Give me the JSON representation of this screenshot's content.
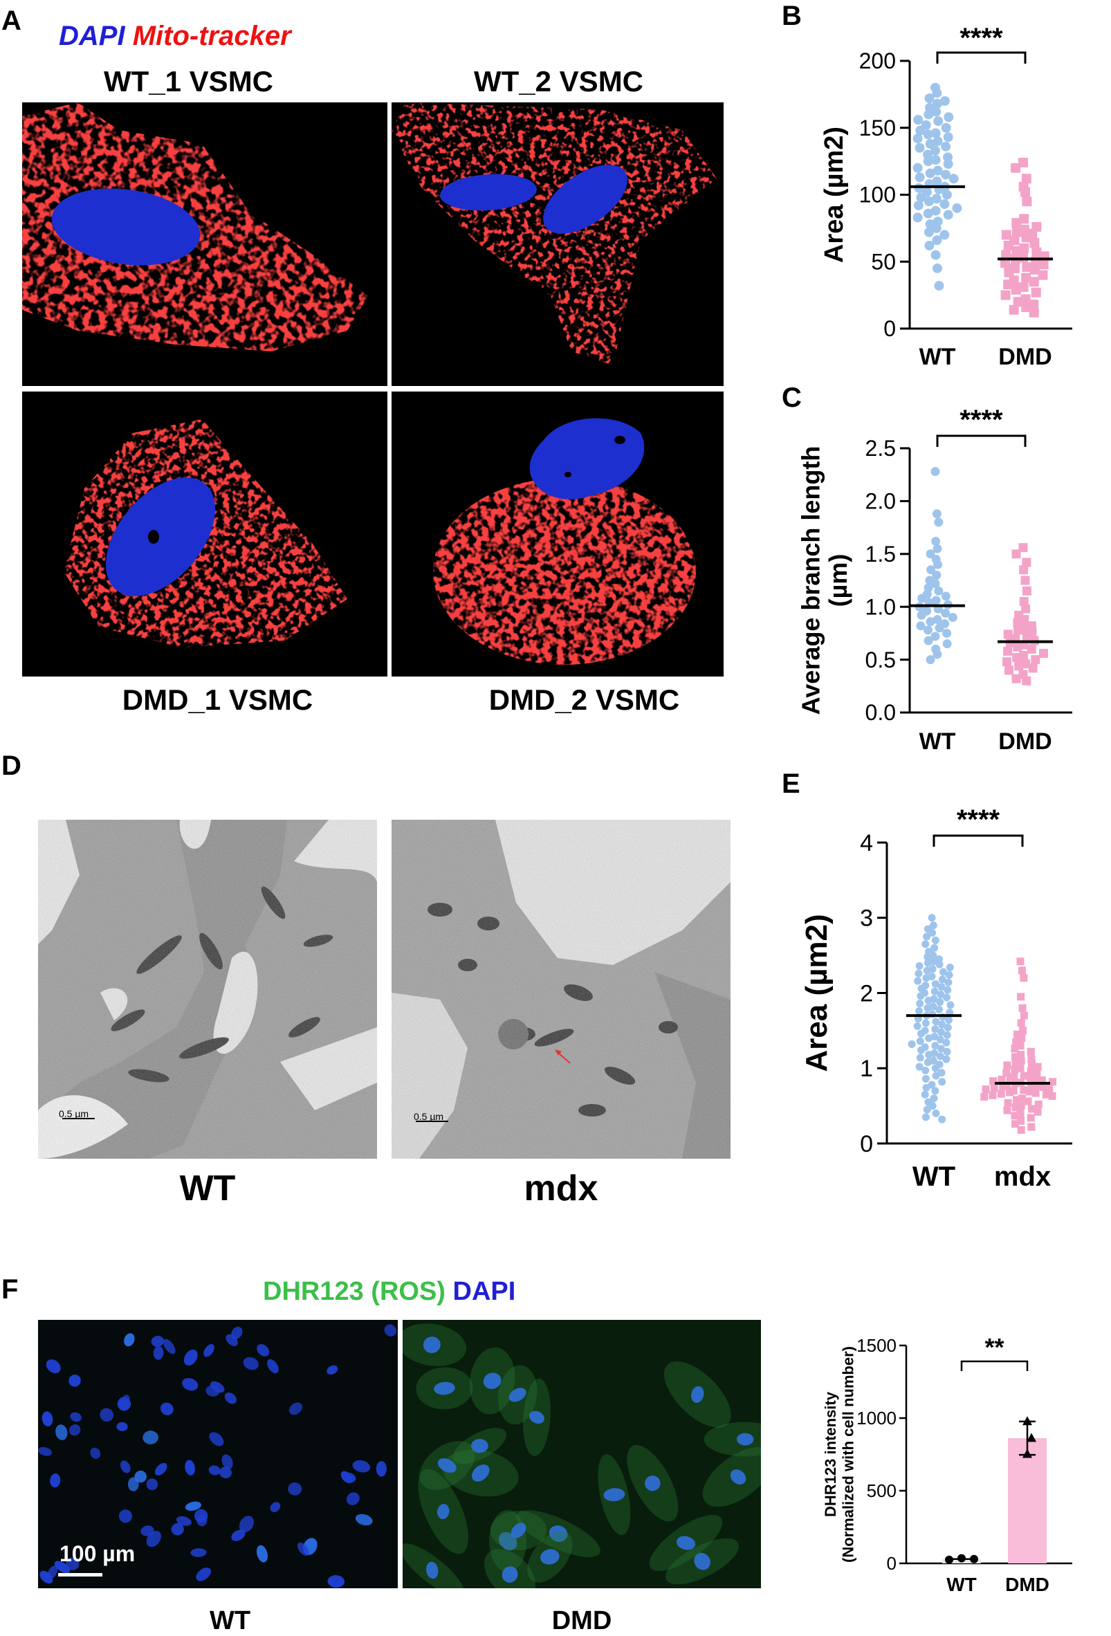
{
  "panels": {
    "a": {
      "label": "A",
      "legend": {
        "dapi": "DAPI",
        "mito": "Mito-tracker"
      },
      "images": [
        {
          "caption": "WT_1 VSMC"
        },
        {
          "caption": "WT_2 VSMC"
        },
        {
          "caption": "DMD_1 VSMC"
        },
        {
          "caption": "DMD_2 VSMC"
        }
      ]
    },
    "d": {
      "label": "D",
      "images": [
        {
          "caption": "WT",
          "scale_bar": "0.5 µm"
        },
        {
          "caption": "mdx",
          "scale_bar": "0.5 µm"
        }
      ]
    },
    "f": {
      "label": "F",
      "legend": {
        "ros": "DHR123 (ROS)",
        "dapi": "DAPI"
      },
      "images": [
        {
          "caption": "WT",
          "scale_bar": "100 µm"
        },
        {
          "caption": "DMD"
        }
      ]
    }
  },
  "colors": {
    "wt": "#9ec4ec",
    "dmd": "#f4a3c8",
    "dmd_bar": "#f9bcd9",
    "dapi_blue": "#1f1fd6",
    "mito_red": "#ee1111",
    "ros_green": "#3bbf48"
  },
  "chart_data": [
    {
      "id": "B",
      "label": "B",
      "type": "scatter",
      "ylabel": "Area (µm2)",
      "ylim": [
        0,
        200
      ],
      "yticks": [
        0,
        50,
        100,
        150,
        200
      ],
      "categories": [
        "WT",
        "DMD"
      ],
      "means": [
        106,
        52
      ],
      "significance": "****",
      "series": [
        {
          "category": "WT",
          "marker": "circle",
          "values": [
            180,
            176,
            172,
            170,
            168,
            165,
            162,
            160,
            158,
            156,
            155,
            152,
            150,
            148,
            146,
            145,
            143,
            142,
            140,
            138,
            136,
            135,
            133,
            130,
            128,
            126,
            125,
            123,
            120,
            118,
            116,
            115,
            113,
            112,
            110,
            108,
            106,
            105,
            104,
            102,
            100,
            98,
            97,
            95,
            93,
            92,
            90,
            88,
            86,
            85,
            83,
            80,
            78,
            75,
            72,
            70,
            66,
            62,
            55,
            45,
            32
          ]
        },
        {
          "category": "DMD",
          "marker": "square",
          "values": [
            124,
            120,
            112,
            106,
            102,
            95,
            82,
            79,
            76,
            74,
            72,
            71,
            70,
            68,
            66,
            64,
            62,
            60,
            58,
            57,
            55,
            54,
            53,
            52,
            50,
            49,
            48,
            46,
            45,
            44,
            42,
            40,
            38,
            36,
            35,
            33,
            31,
            29,
            27,
            25,
            22,
            20,
            18,
            16,
            14,
            12
          ]
        }
      ]
    },
    {
      "id": "C",
      "label": "C",
      "type": "scatter",
      "ylabel": "Average branch length (µm)",
      "ylim": [
        0,
        2.5
      ],
      "yticks": [
        "0.0",
        "0.5",
        "1.0",
        "1.5",
        "2.0",
        "2.5"
      ],
      "categories": [
        "WT",
        "DMD"
      ],
      "means": [
        1.01,
        0.67
      ],
      "significance": "****",
      "series": [
        {
          "category": "WT",
          "marker": "circle",
          "values": [
            2.28,
            1.88,
            1.8,
            1.62,
            1.55,
            1.5,
            1.45,
            1.4,
            1.35,
            1.3,
            1.25,
            1.22,
            1.18,
            1.15,
            1.12,
            1.1,
            1.08,
            1.06,
            1.04,
            1.02,
            1.0,
            0.98,
            0.96,
            0.94,
            0.92,
            0.9,
            0.88,
            0.86,
            0.84,
            0.82,
            0.8,
            0.78,
            0.75,
            0.72,
            0.68,
            0.65,
            0.6,
            0.55,
            0.5
          ]
        },
        {
          "category": "DMD",
          "marker": "square",
          "values": [
            1.56,
            1.5,
            1.42,
            1.35,
            1.25,
            1.15,
            1.05,
            0.98,
            0.92,
            0.88,
            0.85,
            0.82,
            0.8,
            0.78,
            0.76,
            0.74,
            0.72,
            0.7,
            0.68,
            0.66,
            0.64,
            0.62,
            0.6,
            0.58,
            0.56,
            0.54,
            0.52,
            0.5,
            0.48,
            0.46,
            0.44,
            0.42,
            0.4,
            0.36,
            0.32,
            0.3
          ]
        }
      ]
    },
    {
      "id": "E",
      "label": "E",
      "type": "scatter",
      "ylabel": "Area (µm2)",
      "ylim": [
        0,
        4
      ],
      "yticks": [
        0,
        1,
        2,
        3,
        4
      ],
      "categories": [
        "WT",
        "mdx"
      ],
      "means": [
        1.7,
        0.8
      ],
      "significance": "****",
      "series": [
        {
          "category": "WT",
          "marker": "circle",
          "values": [
            3.0,
            2.9,
            2.85,
            2.8,
            2.75,
            2.7,
            2.65,
            2.6,
            2.55,
            2.5,
            2.48,
            2.45,
            2.42,
            2.4,
            2.38,
            2.36,
            2.34,
            2.32,
            2.3,
            2.28,
            2.26,
            2.24,
            2.22,
            2.2,
            2.18,
            2.16,
            2.14,
            2.12,
            2.1,
            2.08,
            2.06,
            2.04,
            2.02,
            2.0,
            1.98,
            1.96,
            1.94,
            1.92,
            1.9,
            1.88,
            1.86,
            1.84,
            1.82,
            1.8,
            1.78,
            1.76,
            1.74,
            1.72,
            1.7,
            1.68,
            1.66,
            1.64,
            1.62,
            1.6,
            1.58,
            1.56,
            1.54,
            1.52,
            1.5,
            1.48,
            1.46,
            1.44,
            1.42,
            1.4,
            1.38,
            1.36,
            1.34,
            1.32,
            1.3,
            1.28,
            1.26,
            1.24,
            1.22,
            1.2,
            1.18,
            1.16,
            1.14,
            1.12,
            1.1,
            1.08,
            1.05,
            1.02,
            1.0,
            0.97,
            0.94,
            0.9,
            0.86,
            0.82,
            0.78,
            0.74,
            0.7,
            0.65,
            0.6,
            0.55,
            0.5,
            0.45,
            0.4,
            0.35,
            0.32
          ]
        },
        {
          "category": "mdx",
          "marker": "square",
          "values": [
            2.42,
            2.3,
            2.2,
            1.95,
            1.8,
            1.7,
            1.6,
            1.5,
            1.45,
            1.4,
            1.35,
            1.3,
            1.26,
            1.22,
            1.18,
            1.15,
            1.12,
            1.1,
            1.08,
            1.06,
            1.04,
            1.02,
            1.0,
            0.98,
            0.96,
            0.94,
            0.92,
            0.9,
            0.89,
            0.88,
            0.87,
            0.86,
            0.85,
            0.84,
            0.83,
            0.82,
            0.81,
            0.8,
            0.79,
            0.78,
            0.77,
            0.76,
            0.75,
            0.74,
            0.73,
            0.72,
            0.71,
            0.7,
            0.69,
            0.68,
            0.67,
            0.66,
            0.65,
            0.64,
            0.63,
            0.62,
            0.6,
            0.58,
            0.56,
            0.54,
            0.52,
            0.5,
            0.48,
            0.46,
            0.44,
            0.42,
            0.4,
            0.37,
            0.34,
            0.3,
            0.26,
            0.22,
            0.18
          ]
        }
      ]
    },
    {
      "id": "F",
      "label": "",
      "type": "bar",
      "ylabel": "DHR123 intensity (Normalized with cell number)",
      "ylabel_line1": "DHR123 intensity",
      "ylabel_line2": "(Normalized with cell number)",
      "ylim": [
        0,
        1500
      ],
      "yticks": [
        0,
        500,
        1000,
        1500
      ],
      "categories": [
        "WT",
        "DMD"
      ],
      "values": [
        30,
        862
      ],
      "error": [
        0,
        115
      ],
      "points": [
        [
          25,
          35,
          30
        ],
        [
          975,
          860,
          750
        ]
      ],
      "significance": "**"
    }
  ]
}
